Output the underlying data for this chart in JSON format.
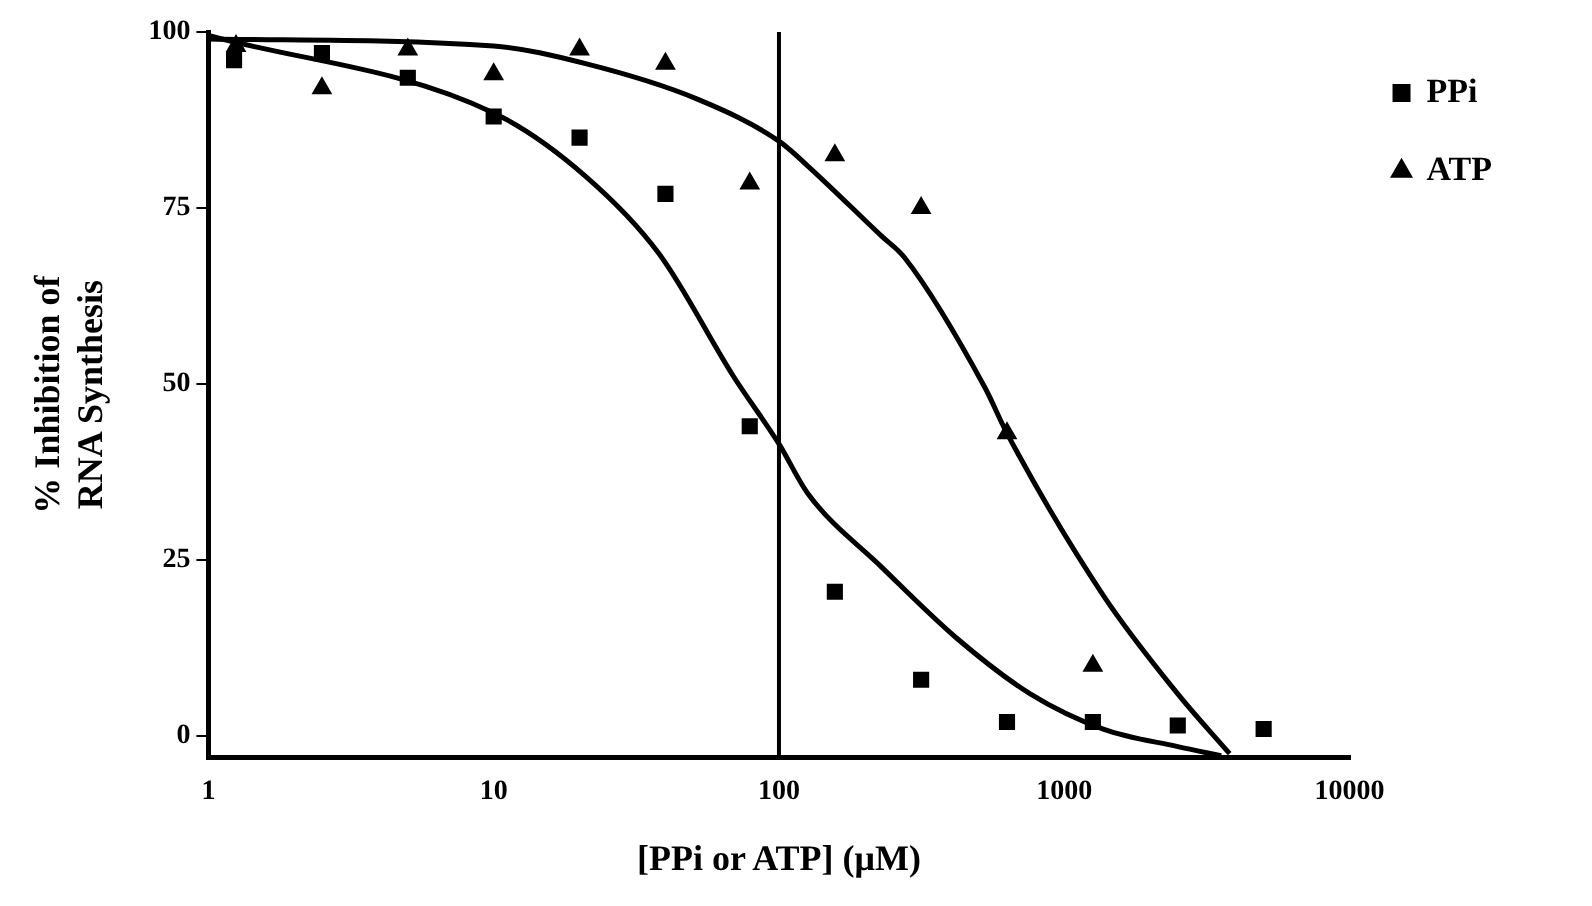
{
  "chart_data": {
    "type": "scatter",
    "xlabel": "[PPi or ATP] (μM)",
    "ylabel": "% Inhibition of RNA Synthesis",
    "log": "x",
    "xlim": [
      1,
      10000
    ],
    "xticks": [
      1,
      10,
      100,
      1000,
      10000
    ],
    "ylim": [
      -3,
      100
    ],
    "yticks": [
      0,
      25,
      50,
      75,
      100
    ],
    "grid": false,
    "legend": "top right",
    "ref_lines": [
      {
        "axis": "x",
        "value": 100,
        "color": "#000000"
      }
    ],
    "series": [
      {
        "name": "PPi",
        "marker": "square",
        "color": "#000000",
        "x": [
          1.23,
          2.5,
          5,
          10,
          20,
          40,
          79,
          157,
          315,
          630,
          1260,
          2500,
          5000
        ],
        "values": [
          96,
          97,
          93.5,
          88,
          85,
          77,
          44,
          20.5,
          8,
          2,
          2,
          1.5,
          1
        ]
      },
      {
        "name": "ATP",
        "marker": "triangle",
        "color": "#000000",
        "x": [
          1.25,
          2.5,
          5,
          10,
          20,
          40,
          79,
          157,
          315,
          630,
          1260
        ],
        "values": [
          98,
          92,
          97.5,
          94,
          97.5,
          95.5,
          78.5,
          82.5,
          75,
          43,
          10
        ]
      },
      {
        "type": "line",
        "marker": "none",
        "line_style": "solid",
        "color": "#000000",
        "x": [
          1,
          10,
          21,
          38,
          69.5,
          100,
          126,
          229,
          417,
          760,
          1370,
          2500,
          3550
        ],
        "values": [
          99.5,
          88.5,
          79.5,
          68.5,
          51,
          41.5,
          34.5,
          24,
          14,
          6,
          1,
          -1.5,
          -2.8
        ]
      },
      {
        "type": "line",
        "marker": "none",
        "line_style": "solid",
        "color": "#000000",
        "x": [
          1,
          10,
          21,
          51.5,
          100,
          126,
          229,
          275,
          527,
          630,
          1370,
          2500,
          3800
        ],
        "values": [
          99,
          98,
          95.5,
          90.5,
          84.5,
          81,
          71,
          68,
          49.5,
          43,
          20,
          6,
          -2.5
        ]
      }
    ]
  }
}
